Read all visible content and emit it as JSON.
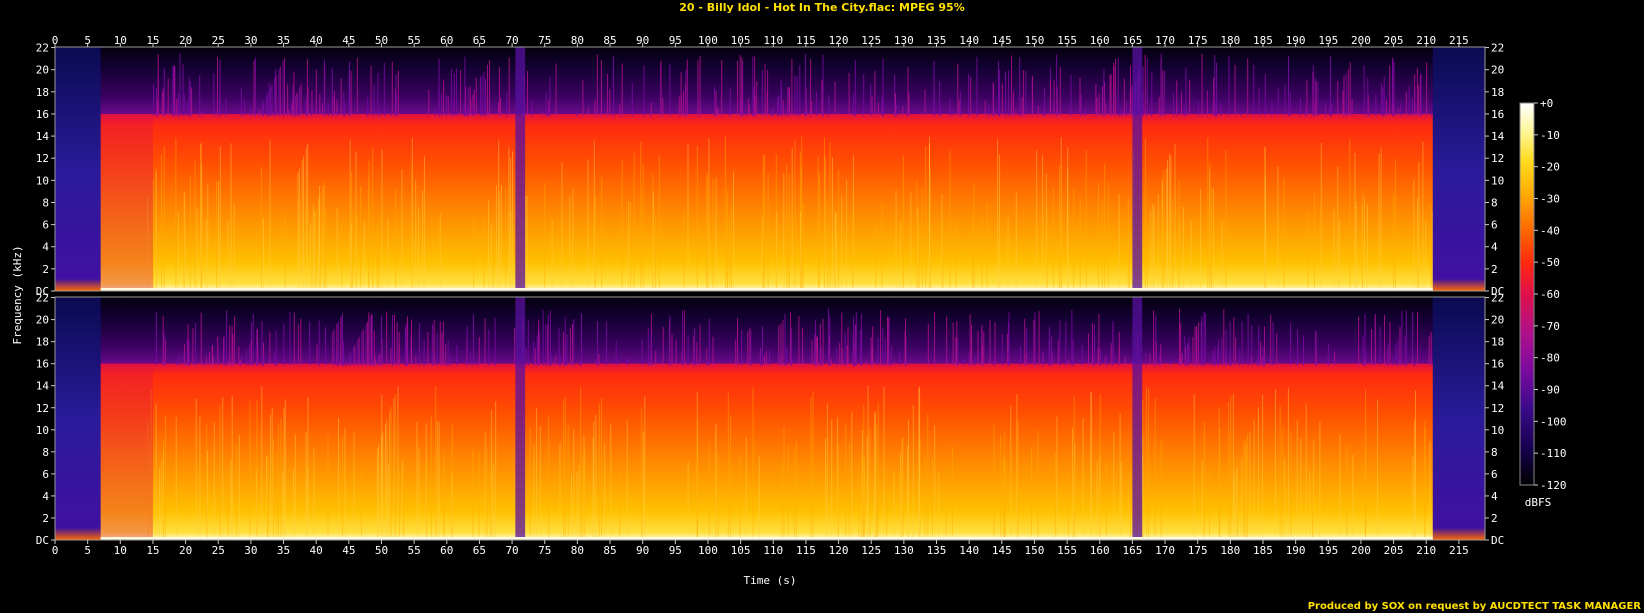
{
  "title": "20 - Billy Idol - Hot In The City.flac: MPEG 95%",
  "credit": "Produced by SOX on request by AUCDTECT TASK MANAGER",
  "chart_data": {
    "type": "heatmap",
    "subtype": "spectrogram",
    "channels": 2,
    "xlabel": "Time (s)",
    "ylabel": "Frequency (kHz)",
    "xlim": [
      0,
      219
    ],
    "ylim": [
      0,
      22.05
    ],
    "x_ticks": [
      0,
      5,
      10,
      15,
      20,
      25,
      30,
      35,
      40,
      45,
      50,
      55,
      60,
      65,
      70,
      75,
      80,
      85,
      90,
      95,
      100,
      105,
      110,
      115,
      120,
      125,
      130,
      135,
      140,
      145,
      150,
      155,
      160,
      165,
      170,
      175,
      180,
      185,
      190,
      195,
      200,
      205,
      210,
      215
    ],
    "y_ticks": [
      "DC",
      "2",
      "4",
      "6",
      "8",
      "10",
      "12",
      "14",
      "16",
      "18",
      "20",
      "22"
    ],
    "colorbar": {
      "label": "dBFS",
      "ticks": [
        "+0",
        "-10",
        "-20",
        "-30",
        "-40",
        "-50",
        "-60",
        "-70",
        "-80",
        "-90",
        "-100",
        "-110",
        "-120"
      ],
      "range": [
        -120,
        0
      ],
      "colors": [
        "#000000",
        "#14004a",
        "#3a0a8a",
        "#7a0aa0",
        "#b0108a",
        "#e0104a",
        "#ff2810",
        "#ff6a00",
        "#ffaa00",
        "#ffdc20",
        "#fff7a0",
        "#ffffff"
      ]
    },
    "lowpass_cutoff_khz": 16,
    "events": [
      {
        "name": "fade-in",
        "time_s": [
          0,
          7
        ]
      },
      {
        "name": "dip",
        "time_s": [
          70.5,
          72
        ]
      },
      {
        "name": "dip",
        "time_s": [
          165,
          166.5
        ]
      },
      {
        "name": "fade-out",
        "time_s": [
          211,
          219
        ]
      }
    ]
  }
}
